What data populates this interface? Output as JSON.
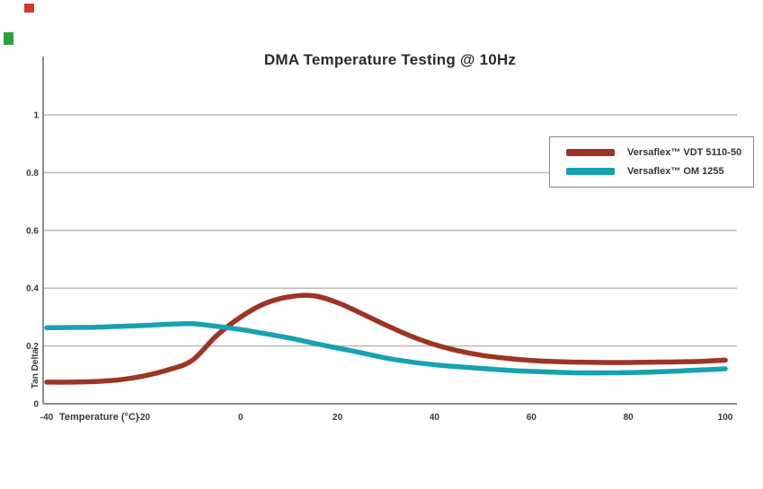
{
  "page": {
    "background": "#ffffff"
  },
  "artifacts": {
    "red_square_color": "#d23b29",
    "green_square_color": "#2f9e3b"
  },
  "colors": {
    "gridline": "#b5b5b5",
    "axis": "#8c8c8c",
    "tick_text": "#3a3a3a",
    "title_text": "#2b2b2b",
    "legend_border": "#8a8a8a"
  },
  "chart_data": {
    "type": "line",
    "title": "DMA Temperature Testing @ 10Hz",
    "xlabel": "Temperature (°C)",
    "ylabel": "Tan Delta",
    "xlim": [
      -40,
      100
    ],
    "ylim": [
      0,
      1.2
    ],
    "x_ticks": [
      -40,
      -20,
      0,
      20,
      40,
      60,
      80,
      100
    ],
    "y_ticks": [
      0,
      0.2,
      0.4,
      0.6,
      0.8,
      1
    ],
    "grid": "horizontal",
    "legend_position": "upper right",
    "x": [
      -40,
      -35,
      -30,
      -25,
      -20,
      -15,
      -10,
      -5,
      0,
      5,
      10,
      15,
      20,
      25,
      30,
      35,
      40,
      45,
      50,
      55,
      60,
      65,
      70,
      75,
      80,
      85,
      90,
      95,
      100
    ],
    "series": [
      {
        "name": "Versaflex™ VDT 5110-50",
        "color": "#9e3423",
        "values": [
          0.075,
          0.075,
          0.077,
          0.083,
          0.096,
          0.117,
          0.15,
          0.235,
          0.3,
          0.347,
          0.37,
          0.374,
          0.35,
          0.312,
          0.272,
          0.235,
          0.205,
          0.183,
          0.167,
          0.157,
          0.15,
          0.146,
          0.144,
          0.143,
          0.143,
          0.144,
          0.145,
          0.147,
          0.151
        ]
      },
      {
        "name": "Versaflex™ OM 1255",
        "color": "#17a2b2",
        "values": [
          0.263,
          0.264,
          0.265,
          0.268,
          0.271,
          0.275,
          0.277,
          0.268,
          0.257,
          0.243,
          0.228,
          0.21,
          0.193,
          0.176,
          0.158,
          0.145,
          0.135,
          0.128,
          0.122,
          0.116,
          0.112,
          0.109,
          0.107,
          0.107,
          0.108,
          0.11,
          0.113,
          0.117,
          0.121
        ]
      }
    ]
  }
}
